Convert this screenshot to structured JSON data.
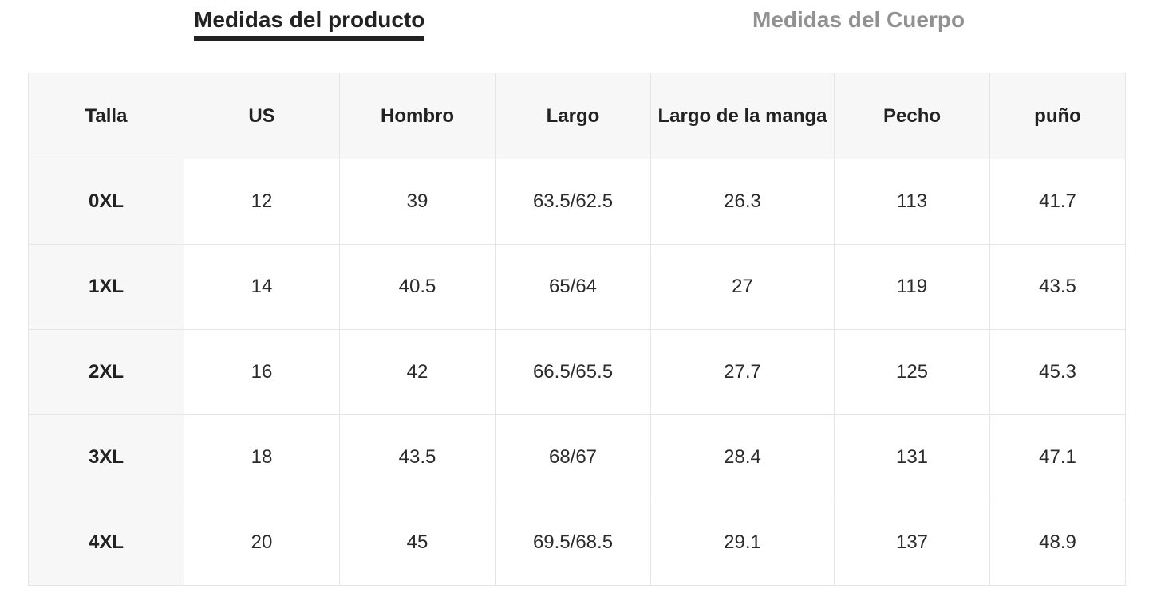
{
  "tabs": {
    "product": {
      "label": "Medidas del producto",
      "active": true
    },
    "body": {
      "label": "Medidas del Cuerpo",
      "active": false
    }
  },
  "table": {
    "columns": [
      "Talla",
      "US",
      "Hombro",
      "Largo",
      "Largo de la manga",
      "Pecho",
      "puño"
    ],
    "rows": [
      {
        "size": "0XL",
        "values": [
          "12",
          "39",
          "63.5/62.5",
          "26.3",
          "113",
          "41.7"
        ]
      },
      {
        "size": "1XL",
        "values": [
          "14",
          "40.5",
          "65/64",
          "27",
          "119",
          "43.5"
        ]
      },
      {
        "size": "2XL",
        "values": [
          "16",
          "42",
          "66.5/65.5",
          "27.7",
          "125",
          "45.3"
        ]
      },
      {
        "size": "3XL",
        "values": [
          "18",
          "43.5",
          "68/67",
          "28.4",
          "131",
          "47.1"
        ]
      },
      {
        "size": "4XL",
        "values": [
          "20",
          "45",
          "69.5/68.5",
          "29.1",
          "137",
          "48.9"
        ]
      }
    ]
  },
  "colors": {
    "active_tab_text": "#222222",
    "active_tab_underline": "#222222",
    "inactive_tab_text": "#919191",
    "header_cell_bg": "#f7f7f7",
    "cell_border": "#e5e5e5",
    "cell_text": "#2b2b2b"
  }
}
